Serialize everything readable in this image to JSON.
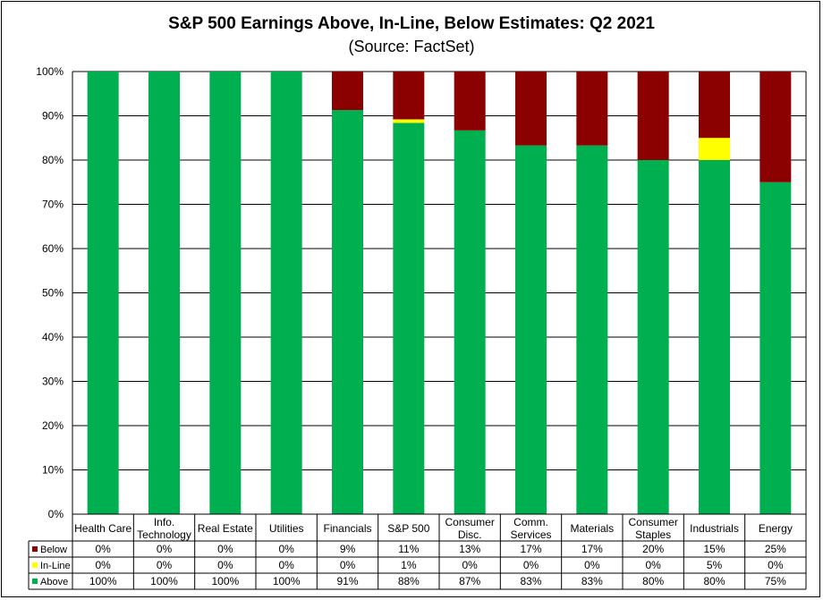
{
  "chart_data": {
    "type": "bar",
    "stacked": true,
    "title": "S&P 500 Earnings Above, In-Line, Below Estimates: Q2 2021",
    "subtitle": "(Source: FactSet)",
    "categories": [
      [
        "Health Care"
      ],
      [
        "Info.",
        "Technology"
      ],
      [
        "Real Estate"
      ],
      [
        "Utilities"
      ],
      [
        "Financials"
      ],
      [
        "S&P 500"
      ],
      [
        "Consumer",
        "Disc."
      ],
      [
        "Comm.",
        "Services"
      ],
      [
        "Materials"
      ],
      [
        "Consumer",
        "Staples"
      ],
      [
        "Industrials"
      ],
      [
        "Energy"
      ]
    ],
    "ylim": [
      0,
      100
    ],
    "yticks": [
      "0%",
      "10%",
      "20%",
      "30%",
      "40%",
      "50%",
      "60%",
      "70%",
      "80%",
      "90%",
      "100%"
    ],
    "grid": true,
    "legend": "data-table-left",
    "series": [
      {
        "name": "Above",
        "color": "#00b050",
        "values": [
          100,
          100,
          100,
          100,
          91.3,
          88.4,
          86.7,
          83.3,
          83.3,
          80,
          80,
          75
        ],
        "labels": [
          "100%",
          "100%",
          "100%",
          "100%",
          "91%",
          "88%",
          "87%",
          "83%",
          "83%",
          "80%",
          "80%",
          "75%"
        ]
      },
      {
        "name": "In-Line",
        "color": "#ffff00",
        "values": [
          0,
          0,
          0,
          0,
          0,
          0.8,
          0,
          0,
          0,
          0,
          5,
          0
        ],
        "labels": [
          "0%",
          "0%",
          "0%",
          "0%",
          "0%",
          "1%",
          "0%",
          "0%",
          "0%",
          "0%",
          "5%",
          "0%"
        ]
      },
      {
        "name": "Below",
        "color": "#8b0000",
        "values": [
          0,
          0,
          0,
          0,
          8.7,
          10.8,
          13.3,
          16.7,
          16.7,
          20,
          15,
          25
        ],
        "labels": [
          "0%",
          "0%",
          "0%",
          "0%",
          "9%",
          "11%",
          "13%",
          "17%",
          "17%",
          "20%",
          "15%",
          "25%"
        ]
      }
    ],
    "table_row_order": [
      "Below",
      "In-Line",
      "Above"
    ]
  }
}
